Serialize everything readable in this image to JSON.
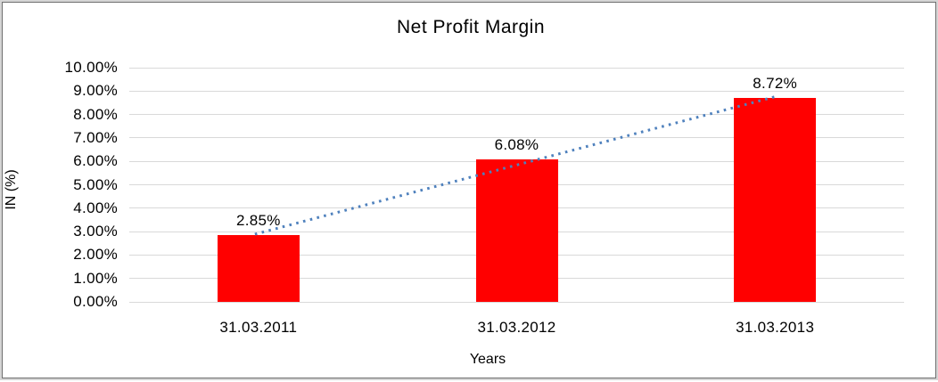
{
  "chart_data": {
    "type": "bar",
    "title": "Net Profit Margin",
    "xlabel": "Years",
    "ylabel": "IN (%)",
    "categories": [
      "31.03.2011",
      "31.03.2012",
      "31.03.2013"
    ],
    "values": [
      2.85,
      6.08,
      8.72
    ],
    "value_labels": [
      "2.85%",
      "6.08%",
      "8.72%"
    ],
    "ylim": [
      0,
      10
    ],
    "ytick_step": 1,
    "ytick_labels": [
      "0.00%",
      "1.00%",
      "2.00%",
      "3.00%",
      "4.00%",
      "5.00%",
      "6.00%",
      "7.00%",
      "8.00%",
      "9.00%",
      "10.00%"
    ],
    "grid": true,
    "legend_position": "none",
    "bar_color": "#ff0000",
    "gridline_color": "#d9d9d9",
    "trendline": {
      "type": "linear",
      "style": "dotted",
      "color": "#4f81bd"
    }
  }
}
